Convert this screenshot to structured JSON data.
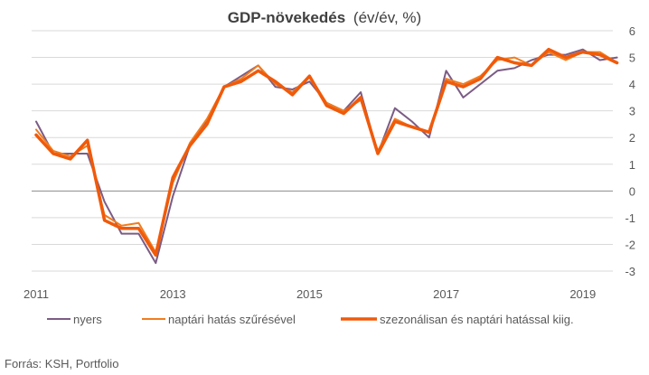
{
  "chart_data": {
    "type": "line",
    "title": "GDP-növekedés",
    "title_unit": "(év/év, %)",
    "source": "Forrás: KSH, Portfolio",
    "y_ticks": [
      "6",
      "5",
      "4",
      "3",
      "2",
      "1",
      "0",
      "-1",
      "-2",
      "-3"
    ],
    "x_ticks": [
      "2011",
      "2013",
      "2015",
      "2017",
      "2019"
    ],
    "ylim": [
      -3,
      6
    ],
    "grid": true,
    "legend_position": "bottom",
    "x_start": "2011 Q1",
    "quarters": 35,
    "series": [
      {
        "name": "nyers",
        "color": "#7b5c85",
        "values": [
          2.6,
          1.4,
          1.4,
          1.4,
          -0.4,
          -1.6,
          -1.6,
          -2.7,
          -0.2,
          1.7,
          2.6,
          3.9,
          4.3,
          4.7,
          3.9,
          3.8,
          4.1,
          3.3,
          3.0,
          3.7,
          1.4,
          3.1,
          2.6,
          2.0,
          4.5,
          3.5,
          4.0,
          4.5,
          4.6,
          4.9,
          5.1,
          5.1,
          5.3,
          4.9,
          5.0
        ]
      },
      {
        "name": "naptári hatás szűrésével",
        "color": "#f07c1e",
        "values": [
          2.3,
          1.5,
          1.3,
          1.7,
          -0.9,
          -1.3,
          -1.2,
          -2.3,
          0.3,
          1.8,
          2.7,
          3.9,
          4.2,
          4.7,
          4.0,
          3.7,
          4.3,
          3.3,
          3.0,
          3.4,
          1.5,
          2.7,
          2.4,
          2.2,
          4.2,
          4.0,
          4.3,
          4.9,
          5.0,
          4.7,
          5.2,
          4.9,
          5.2,
          5.2,
          4.8
        ]
      },
      {
        "name": "szezonálisan és naptári hatással kiig.",
        "color": "#f05a0a",
        "values": [
          2.1,
          1.4,
          1.2,
          1.9,
          -1.1,
          -1.4,
          -1.4,
          -2.4,
          0.5,
          1.7,
          2.5,
          3.9,
          4.1,
          4.5,
          4.1,
          3.6,
          4.3,
          3.2,
          2.9,
          3.5,
          1.4,
          2.6,
          2.4,
          2.2,
          4.1,
          3.9,
          4.2,
          5.0,
          4.8,
          4.7,
          5.3,
          5.0,
          5.2,
          5.1,
          4.8
        ]
      }
    ]
  }
}
